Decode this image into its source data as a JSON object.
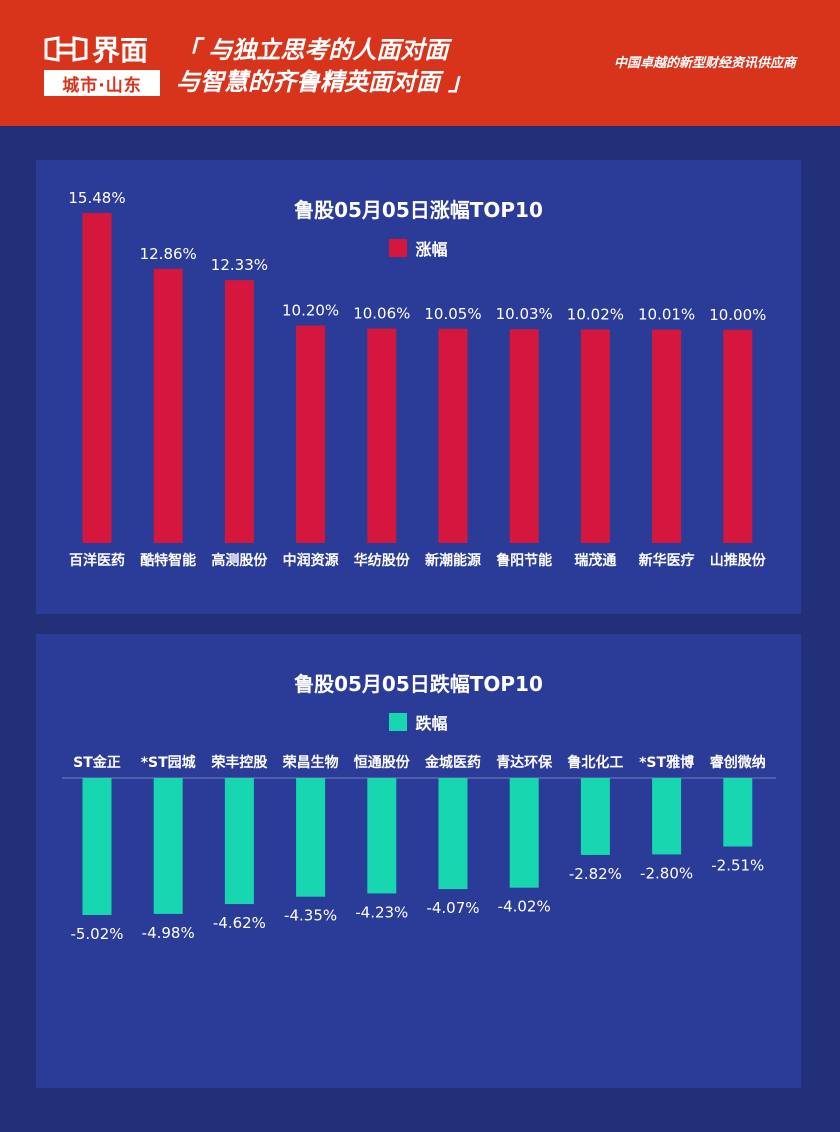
{
  "header": {
    "logo_main": "界面",
    "logo_sub": "城市·山东",
    "slogan_line1": "「 与独立思考的人面对面",
    "slogan_line2": "与智慧的齐鲁精英面对面 」",
    "provider": "中国卓越的新型财经资讯供应商"
  },
  "colors": {
    "header_bg": "#d8341c",
    "page_bg": "#22307a",
    "panel_bg": "#2b3c98",
    "gain_bar": "#d5173d",
    "loss_bar": "#18d6b0"
  },
  "chart_data": [
    {
      "type": "bar",
      "title": "鲁股05月05日涨幅TOP10",
      "legend": "涨幅",
      "categories": [
        "百洋医药",
        "酷特智能",
        "高测股份",
        "中润资源",
        "华纺股份",
        "新潮能源",
        "鲁阳节能",
        "瑞茂通",
        "新华医疗",
        "山推股份"
      ],
      "values": [
        15.48,
        12.86,
        12.33,
        10.2,
        10.06,
        10.05,
        10.03,
        10.02,
        10.01,
        10.0
      ],
      "labels": [
        "15.48%",
        "12.86%",
        "12.33%",
        "10.20%",
        "10.06%",
        "10.05%",
        "10.03%",
        "10.02%",
        "10.01%",
        "10.00%"
      ],
      "ylim": [
        0,
        15.48
      ],
      "grid": false
    },
    {
      "type": "bar",
      "title": "鲁股05月05日跌幅TOP10",
      "legend": "跌幅",
      "categories": [
        "ST金正",
        "*ST园城",
        "荣丰控股",
        "荣昌生物",
        "恒通股份",
        "金城医药",
        "青达环保",
        "鲁北化工",
        "*ST雅博",
        "睿创微纳"
      ],
      "values": [
        -5.02,
        -4.98,
        -4.62,
        -4.35,
        -4.23,
        -4.07,
        -4.02,
        -2.82,
        -2.8,
        -2.51
      ],
      "labels": [
        "-5.02%",
        "-4.98%",
        "-4.62%",
        "-4.35%",
        "-4.23%",
        "-4.07%",
        "-4.02%",
        "-2.82%",
        "-2.80%",
        "-2.51%"
      ],
      "ylim": [
        -5.02,
        0
      ],
      "grid": false
    }
  ],
  "watermark": "界面 城市·山东"
}
